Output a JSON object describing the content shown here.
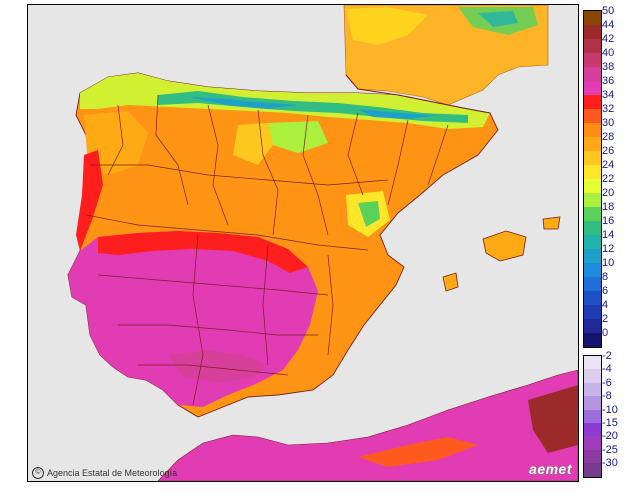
{
  "map": {
    "credit": "Agencia Estatal de Meteorología",
    "logo": "aemet",
    "copyright_symbol": "©"
  },
  "legend": {
    "positive": [
      {
        "label": "50",
        "color": "#8a4500"
      },
      {
        "label": "44",
        "color": "#9c2a2a"
      },
      {
        "label": "42",
        "color": "#b03246"
      },
      {
        "label": "40",
        "color": "#c83a6e"
      },
      {
        "label": "38",
        "color": "#d6409a"
      },
      {
        "label": "36",
        "color": "#e23cb4"
      },
      {
        "label": "34",
        "color": "#ff1e1e"
      },
      {
        "label": "32",
        "color": "#ff5a1e"
      },
      {
        "label": "30",
        "color": "#ff8c14"
      },
      {
        "label": "28",
        "color": "#ffaa14"
      },
      {
        "label": "26",
        "color": "#ffc81e"
      },
      {
        "label": "24",
        "color": "#ffe628"
      },
      {
        "label": "22",
        "color": "#e6ff32"
      },
      {
        "label": "20",
        "color": "#aaf03c"
      },
      {
        "label": "18",
        "color": "#5ad25a"
      },
      {
        "label": "16",
        "color": "#32be82"
      },
      {
        "label": "14",
        "color": "#1eb4aa"
      },
      {
        "label": "12",
        "color": "#1ea0c8"
      },
      {
        "label": "10",
        "color": "#1e8cdc"
      },
      {
        "label": "8",
        "color": "#1e6edc"
      },
      {
        "label": "6",
        "color": "#1e50c8"
      },
      {
        "label": "4",
        "color": "#1e3cb4"
      },
      {
        "label": "2",
        "color": "#1e2896"
      },
      {
        "label": "0",
        "color": "#14146e"
      }
    ],
    "negative": [
      {
        "label": "-2",
        "color": "#ece4f4"
      },
      {
        "label": "-4",
        "color": "#dccdee"
      },
      {
        "label": "-6",
        "color": "#c8b4e6"
      },
      {
        "label": "-8",
        "color": "#b496e0"
      },
      {
        "label": "-10",
        "color": "#9c6edc"
      },
      {
        "label": "-15",
        "color": "#8c3cd2"
      },
      {
        "label": "-20",
        "color": "#a03cbe"
      },
      {
        "label": "-25",
        "color": "#8c3ca0"
      },
      {
        "label": "-30",
        "color": "#783c8c"
      }
    ]
  }
}
